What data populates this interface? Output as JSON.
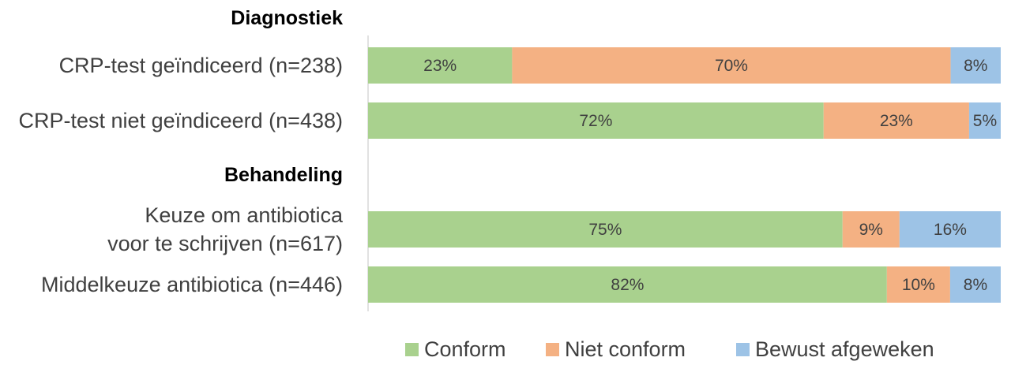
{
  "chart_data": {
    "type": "bar",
    "orientation": "horizontal",
    "stacked": "100%",
    "groups": [
      {
        "name": "Diagnostiek",
        "categories": [
          {
            "label_lines": [
              "CRP-test geïndiceerd (n=238)"
            ],
            "values": [
              23,
              70,
              8
            ]
          },
          {
            "label_lines": [
              "CRP-test niet geïndiceerd (n=438)"
            ],
            "values": [
              72,
              23,
              5
            ]
          }
        ]
      },
      {
        "name": "Behandeling",
        "categories": [
          {
            "label_lines": [
              "Keuze om antibiotica",
              "voor te schrijven (n=617)"
            ],
            "values": [
              75,
              9,
              16
            ]
          },
          {
            "label_lines": [
              "Middelkeuze antibiotica (n=446)"
            ],
            "values": [
              82,
              10,
              8
            ]
          }
        ]
      }
    ],
    "series": [
      {
        "name": "Conform",
        "color": "#a9d18e"
      },
      {
        "name": "Niet conform",
        "color": "#f4b183"
      },
      {
        "name": "Bewust afgeweken",
        "color": "#9dc3e6"
      }
    ],
    "value_suffix": "%",
    "xlim": [
      0,
      100
    ],
    "grid": false,
    "legend_position": "bottom"
  }
}
